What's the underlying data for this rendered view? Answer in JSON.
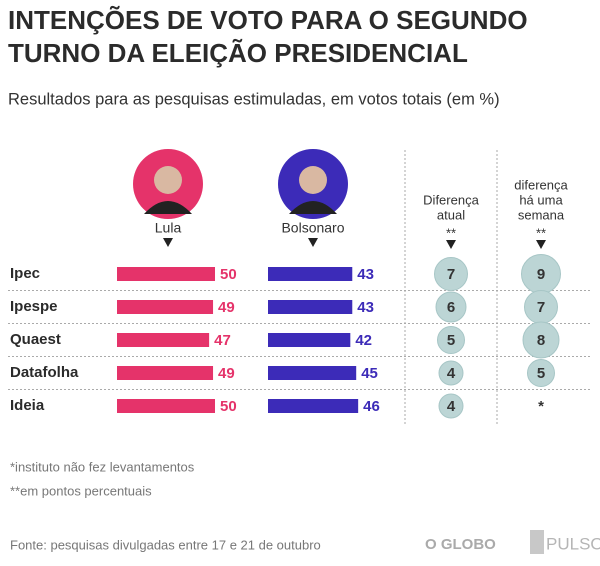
{
  "chart_data": {
    "type": "bar",
    "title": [
      "INTENÇÕES DE VOTO PARA O SEGUNDO",
      "TURNO DA ELEIÇÃO PRESIDENCIAL"
    ],
    "subtitle": "Resultados para as pesquisas estimuladas, em votos totais (em %)",
    "categories": [
      "Ipec",
      "Ipespe",
      "Quaest",
      "Datafolha",
      "Ideia"
    ],
    "series": [
      {
        "name": "Lula",
        "color": "#e5336a",
        "photo_bg": "#e5336a",
        "values": [
          50,
          49,
          47,
          49,
          50
        ]
      },
      {
        "name": "Bolsonaro",
        "color": "#3c2bb8",
        "photo_bg": "#3c2bb8",
        "values": [
          43,
          43,
          42,
          45,
          46
        ]
      }
    ],
    "differences": [
      {
        "name": [
          "Diferença",
          "atual",
          "**"
        ],
        "color": "#bcd5d5",
        "values": [
          7,
          6,
          5,
          4,
          4
        ]
      },
      {
        "name": [
          "diferença",
          "há uma",
          "semana",
          "**"
        ],
        "color": "#bcd5d5",
        "values": [
          9,
          7,
          8,
          5,
          null
        ],
        "value_labels": [
          "9",
          "7",
          "8",
          "5",
          "*"
        ]
      }
    ],
    "notes": [
      "*instituto não fez levantamentos",
      "**em pontos percentuais"
    ],
    "source": "Fonte: pesquisas divulgadas entre 17 e 21 de outubro",
    "logos": [
      "O GLOBO",
      "PULSO"
    ]
  }
}
